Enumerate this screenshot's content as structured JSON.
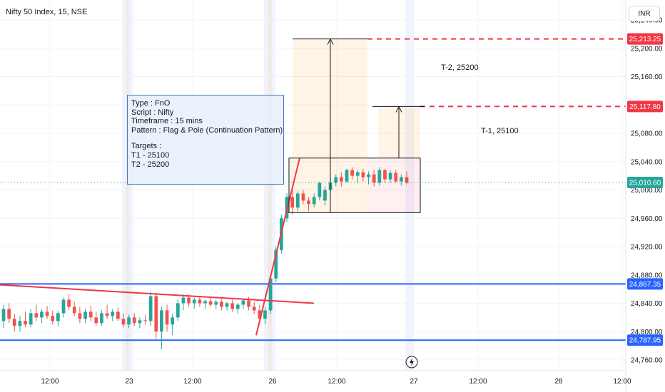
{
  "header": {
    "title": "Nifty 50 Index, 15, NSE",
    "currency": "INR"
  },
  "annotation": {
    "lines": [
      "Type : FnO",
      "Script : Nifty",
      "Timeframe : 15 mins",
      "Pattern : Flag & Pole (Continuation Pattern)",
      "",
      "Targets :",
      "T1 - 25100",
      "T2 - 25200"
    ]
  },
  "target_labels": {
    "t2": "T-2, 25200",
    "t1": "T-1, 25100"
  },
  "colors": {
    "up": "#26a69a",
    "down": "#ef5350",
    "level_line": "#2962ff",
    "target_line": "#f23645",
    "trend_line": "#f23645",
    "current_price": "#26a69a"
  },
  "chart_data": {
    "type": "candlestick",
    "title": "Nifty 50 Index, 15, NSE",
    "y_axis_ticks": [
      "25,240.00",
      "25,200.00",
      "25,160.00",
      "25,120.00",
      "25,080.00",
      "25,040.00",
      "25,000.00",
      "24,960.00",
      "24,920.00",
      "24,880.00",
      "24,840.00",
      "24,800.00",
      "24,760.00"
    ],
    "y_tick_values": [
      25240,
      25200,
      25160,
      25120,
      25080,
      25040,
      25000,
      24960,
      24920,
      24880,
      24840,
      24800,
      24760
    ],
    "ylim": [
      24750,
      25275
    ],
    "x_axis_ticks": [
      "12:00",
      "23",
      "12:00",
      "26",
      "12:00",
      "27",
      "12:00",
      "28",
      "12:00"
    ],
    "session_breaks": [
      "23",
      "26",
      "27"
    ],
    "price_tags": [
      {
        "label": "25,213.25",
        "value": 25213.25,
        "kind": "target"
      },
      {
        "label": "25,117.80",
        "value": 25117.8,
        "kind": "target"
      },
      {
        "label": "25,010.60",
        "value": 25010.6,
        "kind": "current"
      },
      {
        "label": "24,867.35",
        "value": 24867.35,
        "kind": "level"
      },
      {
        "label": "24,787.95",
        "value": 24787.95,
        "kind": "level"
      }
    ],
    "candles_ohlc": [
      [
        24815,
        24838,
        24805,
        24832
      ],
      [
        24832,
        24840,
        24812,
        24818
      ],
      [
        24818,
        24825,
        24800,
        24808
      ],
      [
        24808,
        24822,
        24800,
        24815
      ],
      [
        24815,
        24828,
        24806,
        24810
      ],
      [
        24810,
        24832,
        24806,
        24826
      ],
      [
        24826,
        24838,
        24815,
        24820
      ],
      [
        24820,
        24832,
        24812,
        24828
      ],
      [
        24828,
        24836,
        24818,
        24822
      ],
      [
        24822,
        24830,
        24810,
        24815
      ],
      [
        24815,
        24829,
        24808,
        24826
      ],
      [
        24826,
        24848,
        24820,
        24845
      ],
      [
        24845,
        24853,
        24830,
        24835
      ],
      [
        24835,
        24842,
        24822,
        24826
      ],
      [
        24826,
        24835,
        24812,
        24818
      ],
      [
        24818,
        24832,
        24812,
        24828
      ],
      [
        24828,
        24836,
        24815,
        24820
      ],
      [
        24820,
        24828,
        24808,
        24812
      ],
      [
        24812,
        24830,
        24808,
        24826
      ],
      [
        24826,
        24838,
        24818,
        24822
      ],
      [
        24822,
        24832,
        24815,
        24828
      ],
      [
        24828,
        24834,
        24815,
        24818
      ],
      [
        24818,
        24826,
        24806,
        24810
      ],
      [
        24810,
        24824,
        24805,
        24820
      ],
      [
        24820,
        24826,
        24808,
        24812
      ],
      [
        24812,
        24820,
        24805,
        24816
      ],
      [
        24816,
        24824,
        24810,
        24815
      ],
      [
        24815,
        24856,
        24808,
        24850
      ],
      [
        24850,
        24855,
        24790,
        24800
      ],
      [
        24800,
        24835,
        24775,
        24830
      ],
      [
        24830,
        24838,
        24800,
        24810
      ],
      [
        24810,
        24825,
        24795,
        24820
      ],
      [
        24820,
        24845,
        24815,
        24840
      ],
      [
        24840,
        24853,
        24830,
        24848
      ],
      [
        24848,
        24852,
        24835,
        24840
      ],
      [
        24840,
        24848,
        24832,
        24845
      ],
      [
        24845,
        24850,
        24835,
        24840
      ],
      [
        24840,
        24846,
        24832,
        24843
      ],
      [
        24843,
        24848,
        24835,
        24838
      ],
      [
        24838,
        24845,
        24832,
        24842
      ],
      [
        24842,
        24846,
        24830,
        24835
      ],
      [
        24835,
        24842,
        24830,
        24840
      ],
      [
        24840,
        24845,
        24828,
        24832
      ],
      [
        24832,
        24840,
        24825,
        24838
      ],
      [
        24838,
        24846,
        24832,
        24844
      ],
      [
        24844,
        24849,
        24830,
        24835
      ],
      [
        24835,
        24842,
        24825,
        24830
      ],
      [
        24830,
        24838,
        24812,
        24818
      ],
      [
        24818,
        24835,
        24810,
        24830
      ],
      [
        24830,
        24880,
        24825,
        24875
      ],
      [
        24875,
        24920,
        24870,
        24915
      ],
      [
        24915,
        24965,
        24910,
        24960
      ],
      [
        24960,
        24995,
        24955,
        24990
      ],
      [
        24990,
        25005,
        24965,
        24975
      ],
      [
        24975,
        24998,
        24970,
        24995
      ],
      [
        24995,
        25000,
        24980,
        24985
      ],
      [
        24985,
        24990,
        24970,
        24980
      ],
      [
        24980,
        24995,
        24975,
        24990
      ],
      [
        24990,
        25012,
        24985,
        25010
      ],
      [
        24985,
        25005,
        24978,
        25000
      ],
      [
        25000,
        25015,
        24995,
        25010
      ],
      [
        25010,
        25022,
        25005,
        25018
      ],
      [
        25018,
        25025,
        25005,
        25012
      ],
      [
        25012,
        25030,
        25010,
        25028
      ],
      [
        25028,
        25032,
        25015,
        25020
      ],
      [
        25020,
        25028,
        25010,
        25025
      ],
      [
        25025,
        25030,
        25012,
        25018
      ],
      [
        25018,
        25026,
        25008,
        25022
      ],
      [
        25022,
        25028,
        25005,
        25010
      ],
      [
        25010,
        25032,
        25006,
        25028
      ],
      [
        25028,
        25030,
        25010,
        25015
      ],
      [
        25015,
        25028,
        25010,
        25024
      ],
      [
        25024,
        25028,
        25010,
        25012
      ],
      [
        25012,
        25022,
        25006,
        25018
      ],
      [
        25018,
        25026,
        25008,
        25010
      ]
    ],
    "levels": [
      24867.35,
      24787.95
    ],
    "targets": [
      25213.25,
      25117.8
    ],
    "flag_box": {
      "high": 25045,
      "low": 24968
    }
  }
}
